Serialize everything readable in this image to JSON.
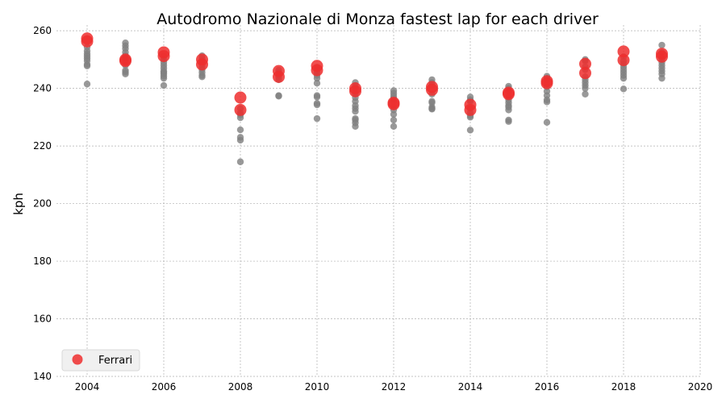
{
  "chart_data": {
    "type": "scatter",
    "title": "Autodromo Nazionale di Monza fastest lap for each driver",
    "xlabel": "",
    "ylabel": "kph",
    "xlim": [
      2003.2,
      2020
    ],
    "ylim": [
      140,
      262
    ],
    "xticks": [
      2004,
      2006,
      2008,
      2010,
      2012,
      2014,
      2016,
      2018,
      2020
    ],
    "yticks": [
      140,
      160,
      180,
      200,
      220,
      240,
      260
    ],
    "grid": true,
    "legend_position": "bottom-left",
    "series": [
      {
        "name": "",
        "color": "#808080",
        "points": [
          [
            2004,
            254.3
          ],
          [
            2004,
            253.0
          ],
          [
            2004,
            252.0
          ],
          [
            2004,
            251.2
          ],
          [
            2004,
            250.4
          ],
          [
            2004,
            249.6
          ],
          [
            2004,
            248.3
          ],
          [
            2004,
            247.8
          ],
          [
            2004,
            241.5
          ],
          [
            2005,
            255.8
          ],
          [
            2005,
            254.8
          ],
          [
            2005,
            253.8
          ],
          [
            2005,
            252.5
          ],
          [
            2005,
            251.4
          ],
          [
            2005,
            250.5
          ],
          [
            2005,
            249.3
          ],
          [
            2005,
            248.0
          ],
          [
            2005,
            246.2
          ],
          [
            2005,
            245.6
          ],
          [
            2005,
            245.0
          ],
          [
            2006,
            251.2
          ],
          [
            2006,
            250.0
          ],
          [
            2006,
            249.0
          ],
          [
            2006,
            248.0
          ],
          [
            2006,
            247.0
          ],
          [
            2006,
            246.0
          ],
          [
            2006,
            245.5
          ],
          [
            2006,
            245.0
          ],
          [
            2006,
            244.2
          ],
          [
            2006,
            243.5
          ],
          [
            2006,
            241.0
          ],
          [
            2007,
            251.3
          ],
          [
            2007,
            250.5
          ],
          [
            2007,
            249.5
          ],
          [
            2007,
            248.5
          ],
          [
            2007,
            247.5
          ],
          [
            2007,
            246.5
          ],
          [
            2007,
            245.5
          ],
          [
            2007,
            244.5
          ],
          [
            2007,
            244.0
          ],
          [
            2008,
            233.0
          ],
          [
            2008,
            231.5
          ],
          [
            2008,
            230.8
          ],
          [
            2008,
            229.8
          ],
          [
            2008,
            225.6
          ],
          [
            2008,
            223.0
          ],
          [
            2008,
            222.0
          ],
          [
            2008,
            214.5
          ],
          [
            2009,
            246.3
          ],
          [
            2009,
            245.5
          ],
          [
            2009,
            244.5
          ],
          [
            2009,
            243.8
          ],
          [
            2009,
            243.0
          ],
          [
            2009,
            237.5
          ],
          [
            2009,
            237.3
          ],
          [
            2010,
            247.3
          ],
          [
            2010,
            246.5
          ],
          [
            2010,
            245.5
          ],
          [
            2010,
            244.5
          ],
          [
            2010,
            243.5
          ],
          [
            2010,
            241.8
          ],
          [
            2010,
            237.5
          ],
          [
            2010,
            237.0
          ],
          [
            2010,
            234.8
          ],
          [
            2010,
            234.3
          ],
          [
            2010,
            229.5
          ],
          [
            2011,
            242.0
          ],
          [
            2011,
            241.0
          ],
          [
            2011,
            240.0
          ],
          [
            2011,
            238.0
          ],
          [
            2011,
            236.8
          ],
          [
            2011,
            235.5
          ],
          [
            2011,
            234.0
          ],
          [
            2011,
            233.0
          ],
          [
            2011,
            232.0
          ],
          [
            2011,
            229.5
          ],
          [
            2011,
            229.0
          ],
          [
            2011,
            228.0
          ],
          [
            2011,
            226.8
          ],
          [
            2012,
            239.2
          ],
          [
            2012,
            238.3
          ],
          [
            2012,
            237.3
          ],
          [
            2012,
            236.5
          ],
          [
            2012,
            235.5
          ],
          [
            2012,
            233.5
          ],
          [
            2012,
            232.5
          ],
          [
            2012,
            231.0
          ],
          [
            2012,
            229.0
          ],
          [
            2012,
            226.8
          ],
          [
            2013,
            243.0
          ],
          [
            2013,
            242.0
          ],
          [
            2013,
            241.0
          ],
          [
            2013,
            238.0
          ],
          [
            2013,
            235.5
          ],
          [
            2013,
            235.0
          ],
          [
            2013,
            233.5
          ],
          [
            2013,
            233.0
          ],
          [
            2013,
            232.8
          ],
          [
            2014,
            237.0
          ],
          [
            2014,
            236.0
          ],
          [
            2014,
            235.5
          ],
          [
            2014,
            233.0
          ],
          [
            2014,
            231.5
          ],
          [
            2014,
            230.5
          ],
          [
            2014,
            230.0
          ],
          [
            2014,
            225.5
          ],
          [
            2015,
            240.7
          ],
          [
            2015,
            240.0
          ],
          [
            2015,
            239.0
          ],
          [
            2015,
            237.0
          ],
          [
            2015,
            236.0
          ],
          [
            2015,
            235.0
          ],
          [
            2015,
            234.0
          ],
          [
            2015,
            233.5
          ],
          [
            2015,
            232.5
          ],
          [
            2015,
            229.0
          ],
          [
            2015,
            228.5
          ],
          [
            2016,
            244.2
          ],
          [
            2016,
            243.5
          ],
          [
            2016,
            243.0
          ],
          [
            2016,
            241.5
          ],
          [
            2016,
            240.5
          ],
          [
            2016,
            239.0
          ],
          [
            2016,
            237.5
          ],
          [
            2016,
            236.0
          ],
          [
            2016,
            235.3
          ],
          [
            2016,
            228.2
          ],
          [
            2017,
            250.0
          ],
          [
            2017,
            249.5
          ],
          [
            2017,
            247.5
          ],
          [
            2017,
            246.5
          ],
          [
            2017,
            244.0
          ],
          [
            2017,
            243.0
          ],
          [
            2017,
            242.0
          ],
          [
            2017,
            241.0
          ],
          [
            2017,
            240.0
          ],
          [
            2017,
            238.0
          ],
          [
            2018,
            251.0
          ],
          [
            2018,
            249.5
          ],
          [
            2018,
            248.5
          ],
          [
            2018,
            247.5
          ],
          [
            2018,
            246.5
          ],
          [
            2018,
            245.5
          ],
          [
            2018,
            244.5
          ],
          [
            2018,
            243.5
          ],
          [
            2018,
            239.8
          ],
          [
            2019,
            255.0
          ],
          [
            2019,
            252.5
          ],
          [
            2019,
            251.0
          ],
          [
            2019,
            250.0
          ],
          [
            2019,
            249.0
          ],
          [
            2019,
            248.0
          ],
          [
            2019,
            247.0
          ],
          [
            2019,
            246.0
          ],
          [
            2019,
            245.0
          ],
          [
            2019,
            243.5
          ]
        ]
      },
      {
        "name": "Ferrari",
        "color": "#ee2e2e",
        "points": [
          [
            2004,
            257.3
          ],
          [
            2004,
            256.3
          ],
          [
            2005,
            250.0
          ],
          [
            2005,
            249.5
          ],
          [
            2006,
            252.5
          ],
          [
            2006,
            251.2
          ],
          [
            2007,
            250.0
          ],
          [
            2007,
            248.3
          ],
          [
            2008,
            236.8
          ],
          [
            2008,
            232.5
          ],
          [
            2009,
            246.0
          ],
          [
            2009,
            244.0
          ],
          [
            2010,
            247.8
          ],
          [
            2010,
            246.3
          ],
          [
            2011,
            240.0
          ],
          [
            2011,
            239.0
          ],
          [
            2012,
            235.0
          ],
          [
            2012,
            234.5
          ],
          [
            2013,
            240.5
          ],
          [
            2013,
            239.5
          ],
          [
            2014,
            234.3
          ],
          [
            2014,
            232.5
          ],
          [
            2015,
            238.5
          ],
          [
            2015,
            238.0
          ],
          [
            2016,
            242.5
          ],
          [
            2016,
            241.8
          ],
          [
            2017,
            248.5
          ],
          [
            2017,
            245.3
          ],
          [
            2018,
            252.8
          ],
          [
            2018,
            249.8
          ],
          [
            2019,
            252.0
          ],
          [
            2019,
            251.0
          ]
        ]
      }
    ]
  }
}
